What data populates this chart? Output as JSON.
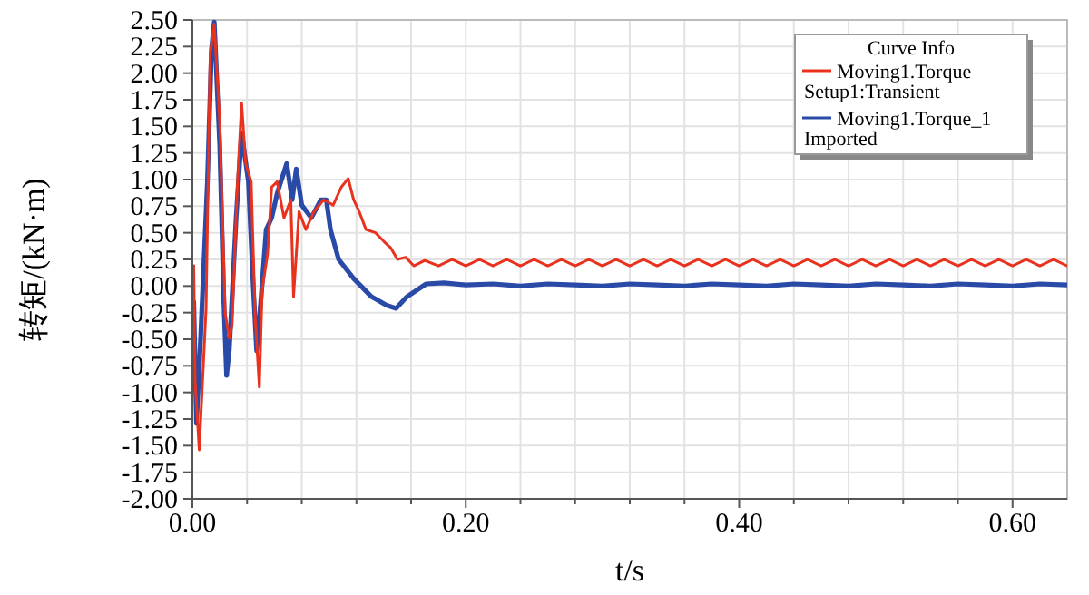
{
  "chart_data": {
    "type": "line",
    "xlabel": "t/s",
    "ylabel": "转矩/(kN·m)",
    "legend_title": "Curve Info",
    "legend": "top right",
    "grid": true,
    "marker": "none",
    "line_style": "solid",
    "xlim": [
      0,
      0.64
    ],
    "xticks": [
      {
        "value": 0,
        "label": "0.00"
      },
      {
        "value": 0.04,
        "label": null
      },
      {
        "value": 0.08,
        "label": null
      },
      {
        "value": 0.12,
        "label": null
      },
      {
        "value": 0.16,
        "label": null
      },
      {
        "value": 0.2,
        "label": "0.20"
      },
      {
        "value": 0.24,
        "label": null
      },
      {
        "value": 0.28,
        "label": null
      },
      {
        "value": 0.32,
        "label": null
      },
      {
        "value": 0.36,
        "label": null
      },
      {
        "value": 0.4,
        "label": "0.40"
      },
      {
        "value": 0.44,
        "label": null
      },
      {
        "value": 0.48,
        "label": null
      },
      {
        "value": 0.52,
        "label": null
      },
      {
        "value": 0.56,
        "label": null
      },
      {
        "value": 0.6,
        "label": "0.60"
      }
    ],
    "ylim": [
      -2,
      2.5
    ],
    "yticks": [
      {
        "value": -2,
        "label": "-2.00"
      },
      {
        "value": -1.75,
        "label": "-1.75"
      },
      {
        "value": -1.5,
        "label": "-1.50"
      },
      {
        "value": -1.25,
        "label": "-1.25"
      },
      {
        "value": -1,
        "label": "-1.00"
      },
      {
        "value": -0.75,
        "label": "-0.75"
      },
      {
        "value": -0.5,
        "label": "-0.50"
      },
      {
        "value": -0.25,
        "label": "-0.25"
      },
      {
        "value": 0,
        "label": "0.00"
      },
      {
        "value": 0.25,
        "label": "0.25"
      },
      {
        "value": 0.5,
        "label": "0.50"
      },
      {
        "value": 0.75,
        "label": "0.75"
      },
      {
        "value": 1,
        "label": "1.00"
      },
      {
        "value": 1.25,
        "label": "1.25"
      },
      {
        "value": 1.5,
        "label": "1.50"
      },
      {
        "value": 1.75,
        "label": "1.75"
      },
      {
        "value": 2,
        "label": "2.00"
      },
      {
        "value": 2.25,
        "label": "2.25"
      },
      {
        "value": 2.5,
        "label": "2.50"
      }
    ],
    "series": [
      {
        "name": "Moving1.Torque Setup1:Transient",
        "color": "#e8321e",
        "x": [
          0.001,
          0.002,
          0.005,
          0.01,
          0.013,
          0.016,
          0.02,
          0.024,
          0.027,
          0.029,
          0.033,
          0.036,
          0.039,
          0.043,
          0.046,
          0.049,
          0.051,
          0.055,
          0.058,
          0.062,
          0.067,
          0.072,
          0.074,
          0.078,
          0.083,
          0.089,
          0.096,
          0.103,
          0.109,
          0.114,
          0.118,
          0.122,
          0.127,
          0.134,
          0.14,
          0.145,
          0.15,
          0.156,
          0.162,
          0.17,
          0.18,
          0.19,
          0.2,
          0.21,
          0.22,
          0.23,
          0.24,
          0.25,
          0.26,
          0.27,
          0.28,
          0.29,
          0.3,
          0.31,
          0.32,
          0.33,
          0.34,
          0.35,
          0.36,
          0.37,
          0.38,
          0.39,
          0.4,
          0.41,
          0.42,
          0.43,
          0.44,
          0.45,
          0.46,
          0.47,
          0.48,
          0.49,
          0.5,
          0.51,
          0.52,
          0.53,
          0.54,
          0.55,
          0.56,
          0.57,
          0.58,
          0.59,
          0.6,
          0.61,
          0.62,
          0.63,
          0.64
        ],
        "values": [
          0.19,
          -0.89,
          -1.54,
          -0.21,
          2.18,
          2.46,
          1.55,
          -0.26,
          -0.49,
          -0.37,
          0.98,
          1.72,
          1.15,
          0.98,
          -0.32,
          -0.95,
          -0.04,
          0.3,
          0.93,
          0.98,
          0.64,
          0.81,
          -0.1,
          0.7,
          0.53,
          0.7,
          0.81,
          0.76,
          0.93,
          1.01,
          0.81,
          0.7,
          0.53,
          0.5,
          0.42,
          0.36,
          0.25,
          0.27,
          0.19,
          0.24,
          0.19,
          0.25,
          0.19,
          0.25,
          0.19,
          0.25,
          0.19,
          0.25,
          0.19,
          0.25,
          0.19,
          0.25,
          0.19,
          0.25,
          0.19,
          0.25,
          0.19,
          0.25,
          0.19,
          0.25,
          0.19,
          0.25,
          0.19,
          0.25,
          0.19,
          0.25,
          0.19,
          0.25,
          0.19,
          0.25,
          0.19,
          0.25,
          0.19,
          0.25,
          0.19,
          0.25,
          0.19,
          0.25,
          0.19,
          0.25,
          0.19,
          0.25,
          0.19,
          0.25,
          0.19,
          0.25,
          0.19
        ]
      },
      {
        "name": "Moving1.Torque_1 Imported",
        "color": "#2a4aa8",
        "x": [
          0.001,
          0.003,
          0.006,
          0.011,
          0.014,
          0.016,
          0.02,
          0.023,
          0.025,
          0.027,
          0.032,
          0.036,
          0.041,
          0.044,
          0.047,
          0.05,
          0.054,
          0.058,
          0.062,
          0.069,
          0.073,
          0.076,
          0.08,
          0.087,
          0.094,
          0.098,
          0.101,
          0.107,
          0.118,
          0.131,
          0.142,
          0.149,
          0.157,
          0.171,
          0.184,
          0.2,
          0.22,
          0.24,
          0.26,
          0.28,
          0.3,
          0.32,
          0.34,
          0.36,
          0.38,
          0.4,
          0.42,
          0.44,
          0.46,
          0.48,
          0.5,
          0.52,
          0.54,
          0.56,
          0.58,
          0.6,
          0.62,
          0.64
        ],
        "values": [
          -0.15,
          -1.29,
          -0.49,
          0.98,
          2.23,
          2.48,
          1.32,
          -0.15,
          -0.84,
          -0.6,
          0.64,
          1.44,
          0.98,
          0.13,
          -0.61,
          -0.15,
          0.53,
          0.64,
          0.87,
          1.15,
          0.81,
          1.1,
          0.76,
          0.64,
          0.81,
          0.81,
          0.53,
          0.25,
          0.07,
          -0.1,
          -0.18,
          -0.21,
          -0.1,
          0.02,
          0.03,
          0.01,
          0.02,
          0.0,
          0.02,
          0.01,
          0.0,
          0.02,
          0.01,
          0.0,
          0.02,
          0.01,
          0.0,
          0.02,
          0.01,
          0.0,
          0.02,
          0.01,
          0.0,
          0.02,
          0.01,
          0.0,
          0.02,
          0.01
        ]
      }
    ]
  }
}
